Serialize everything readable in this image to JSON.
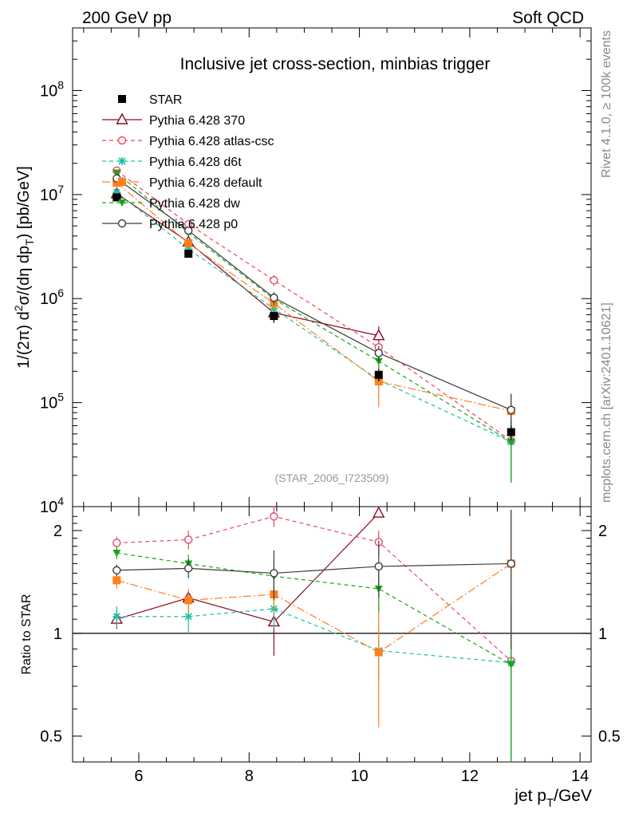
{
  "header": {
    "left": "200 GeV pp",
    "right": "Soft QCD"
  },
  "side_labels": {
    "rivet": "Rivet 4.1.0, ≥ 100k events",
    "mcplots": "mcplots.cern.ch [arXiv:2401.10621]"
  },
  "chart_data": [
    {
      "panel": "main",
      "type": "line",
      "title": "Inclusive jet cross-section, minbias trigger",
      "watermark": "(STAR_2006_I723509)",
      "ylabel": "1/(2π)  d²σ/(dη dp_T) [pb/GeV]",
      "ylabel_parts": {
        "prefix": "1/(2π)  d",
        "sup": "2",
        "mid": "σ/(dη dp",
        "sub": "T",
        "suffix": ") [pb/GeV]"
      },
      "yscale": "log",
      "ylim": [
        10000,
        400000000
      ],
      "xlim": [
        4.8,
        14.2
      ],
      "yticks": [
        {
          "value": 10000,
          "base": "10",
          "exp": "4"
        },
        {
          "value": 100000,
          "base": "10",
          "exp": "5"
        },
        {
          "value": 1000000,
          "base": "10",
          "exp": "6"
        },
        {
          "value": 10000000,
          "base": "10",
          "exp": "7"
        },
        {
          "value": 100000000,
          "base": "10",
          "exp": "8"
        }
      ],
      "legend_position": "top-left",
      "series": [
        {
          "name": "STAR",
          "color": "#000000",
          "marker": "square",
          "dash": "none",
          "line": false,
          "x": [
            5.6,
            6.9,
            8.45,
            10.35,
            12.75
          ],
          "y": [
            9400000,
            2700000,
            680000,
            185000,
            52000
          ],
          "yerr": [
            600000,
            200000,
            80000,
            25000,
            8000
          ]
        },
        {
          "name": "Pythia 6.428 370",
          "color": "#8b0a22",
          "marker": "triangle-open",
          "dash": "none",
          "line": true,
          "x": [
            5.6,
            6.9,
            8.45,
            10.35,
            12.75
          ],
          "y": [
            10200000,
            3500000,
            730000,
            440000,
            0
          ],
          "yerr": [
            500000,
            250000,
            150000,
            100000,
            0
          ]
        },
        {
          "name": "Pythia 6.428 atlas-csc",
          "color": "#ee4466",
          "marker": "circle-open",
          "dash": "5,4",
          "line": true,
          "x": [
            5.6,
            6.9,
            8.45,
            10.35,
            12.75
          ],
          "y": [
            17000000,
            5200000,
            1500000,
            340000,
            43000
          ],
          "yerr": [
            900000,
            400000,
            180000,
            50000,
            25000
          ]
        },
        {
          "name": "Pythia 6.428 d6t",
          "color": "#19c2a1",
          "marker": "star",
          "dash": "5,4",
          "line": true,
          "x": [
            5.6,
            6.9,
            8.45,
            10.35,
            12.75
          ],
          "y": [
            10500000,
            3000000,
            800000,
            165000,
            42000
          ],
          "yerr": [
            500000,
            250000,
            100000,
            30000,
            25000
          ]
        },
        {
          "name": "Pythia 6.428 default",
          "color": "#ff7f1e",
          "marker": "square-filled",
          "dash": "10,3,2,3",
          "line": true,
          "x": [
            5.6,
            6.9,
            8.45,
            10.35,
            12.75
          ],
          "y": [
            13000000,
            3400000,
            900000,
            160000,
            83000
          ],
          "yerr": [
            700000,
            250000,
            120000,
            70000,
            40000
          ]
        },
        {
          "name": "Pythia 6.428 dw",
          "color": "#1aa31a",
          "marker": "triangle-down",
          "dash": "5,4",
          "line": true,
          "x": [
            5.6,
            6.9,
            8.45,
            10.35,
            12.75
          ],
          "y": [
            16200000,
            4300000,
            990000,
            250000,
            42000
          ],
          "yerr": [
            900000,
            300000,
            130000,
            40000,
            25000
          ]
        },
        {
          "name": "Pythia 6.428 p0",
          "color": "#3c3c3c",
          "marker": "circle-open",
          "dash": "none",
          "line": true,
          "x": [
            5.6,
            6.9,
            8.45,
            10.35,
            12.75
          ],
          "y": [
            14300000,
            4500000,
            1020000,
            300000,
            85000
          ],
          "yerr": [
            800000,
            300000,
            130000,
            50000,
            35000
          ]
        }
      ]
    },
    {
      "panel": "ratio",
      "type": "line",
      "xlabel": "jet p_T/GeV",
      "xlabel_parts": {
        "prefix": "jet p",
        "sub": "T",
        "suffix": "/GeV"
      },
      "ylabel": "Ratio to STAR",
      "yscale": "log",
      "ylim": [
        0.42,
        2.35
      ],
      "xlim": [
        4.8,
        14.2
      ],
      "xticks": [
        6,
        8,
        10,
        12,
        14
      ],
      "yticks": [
        0.5,
        1,
        2
      ],
      "reference_line": 1,
      "series": [
        {
          "name": "Pythia 6.428 370",
          "x": [
            5.6,
            6.9,
            8.45,
            10.35
          ],
          "y": [
            1.1,
            1.27,
            1.08,
            2.25
          ],
          "yerr": [
            0.07,
            0.06,
            0.22,
            0.05
          ]
        },
        {
          "name": "Pythia 6.428 atlas-csc",
          "x": [
            5.6,
            6.9,
            8.45,
            10.35,
            12.75
          ],
          "y": [
            1.84,
            1.88,
            2.2,
            1.85,
            0.83
          ],
          "yerr": [
            0.08,
            0.12,
            0.15,
            0.15,
            0.4
          ]
        },
        {
          "name": "Pythia 6.428 d6t",
          "x": [
            5.6,
            6.9,
            8.45,
            10.35,
            12.75
          ],
          "y": [
            1.12,
            1.12,
            1.18,
            0.89,
            0.82
          ],
          "yerr": [
            0.08,
            0.12,
            0.15,
            0.15,
            0.4
          ]
        },
        {
          "name": "Pythia 6.428 default",
          "x": [
            5.6,
            6.9,
            8.45,
            10.35,
            12.75
          ],
          "y": [
            1.43,
            1.25,
            1.3,
            0.88,
            1.6
          ],
          "yerr": [
            0.08,
            0.1,
            0.15,
            0.35,
            0.7
          ]
        },
        {
          "name": "Pythia 6.428 dw",
          "x": [
            5.6,
            6.9,
            8.45,
            10.35,
            12.75
          ],
          "y": [
            1.72,
            1.6,
            1.47,
            1.35,
            0.81
          ],
          "yerr": [
            0.07,
            0.1,
            0.15,
            0.2,
            0.4
          ]
        },
        {
          "name": "Pythia 6.428 p0",
          "x": [
            5.6,
            6.9,
            8.45,
            10.35,
            12.75
          ],
          "y": [
            1.53,
            1.55,
            1.5,
            1.57,
            1.6
          ],
          "yerr": [
            0.06,
            0.1,
            0.25,
            0.3,
            0.7
          ]
        }
      ]
    }
  ]
}
